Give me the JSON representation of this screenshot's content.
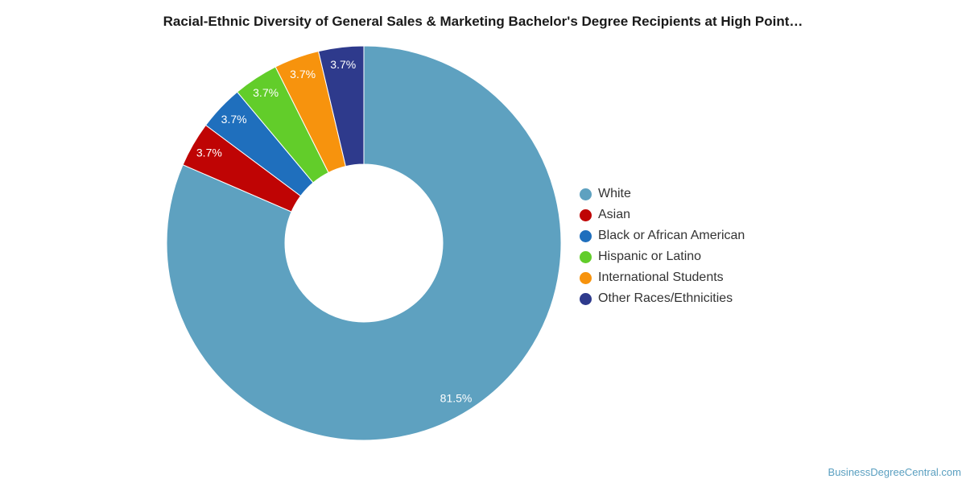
{
  "chart_data": {
    "type": "pie",
    "donut": true,
    "title": "Racial-Ethnic Diversity of General Sales & Marketing Bachelor's Degree Recipients at High Point…",
    "legend_position": "right",
    "slices": [
      {
        "name": "White",
        "value": 81.5,
        "label": "81.5%",
        "color": "#5ea1c0"
      },
      {
        "name": "Asian",
        "value": 3.7,
        "label": "3.7%",
        "color": "#bf0404"
      },
      {
        "name": "Black or African American",
        "value": 3.7,
        "label": "3.7%",
        "color": "#1f6fbd"
      },
      {
        "name": "Hispanic or Latino",
        "value": 3.7,
        "label": "3.7%",
        "color": "#62cd2a"
      },
      {
        "name": "International Students",
        "value": 3.7,
        "label": "3.7%",
        "color": "#f7930d"
      },
      {
        "name": "Other Races/Ethnicities",
        "value": 3.7,
        "label": "3.7%",
        "color": "#2e3a8c"
      }
    ]
  },
  "watermark": "BusinessDegreeCentral.com"
}
